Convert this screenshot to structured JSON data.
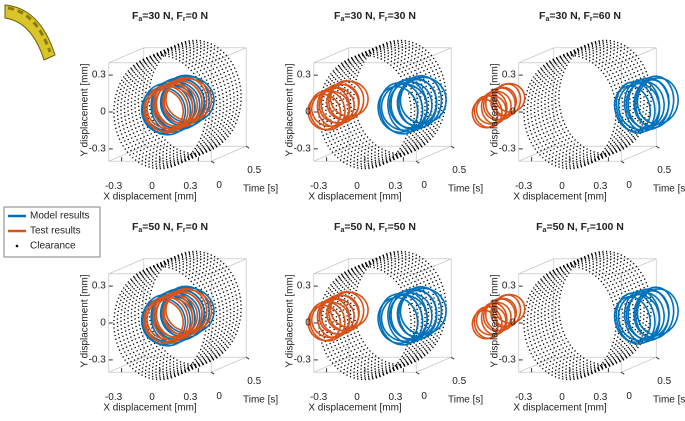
{
  "chart_data": [
    {
      "type": "orbit3d",
      "title": [
        "F",
        "a",
        "=30 N, F",
        "r",
        "=0 N"
      ],
      "xlabel": "X displacement [mm]",
      "ylabel": "Y displacement [mm]",
      "zlabel": "Time [s]",
      "xlim": [
        -0.4,
        0.4
      ],
      "ylim": [
        -0.4,
        0.4
      ],
      "zlim": [
        0,
        0.5
      ],
      "xticks": [
        -0.3,
        0,
        0.3
      ],
      "yticks": [
        -0.3,
        0,
        0.3
      ],
      "zticks": [
        0,
        0.5
      ]
    },
    {
      "type": "orbit3d",
      "title": [
        "F",
        "a",
        "=30 N, F",
        "r",
        "=30 N"
      ],
      "xlabel": "X displacement [mm]",
      "ylabel": "Y displacement [mm]",
      "zlabel": "Time [s]",
      "xlim": [
        -0.4,
        0.4
      ],
      "ylim": [
        -0.4,
        0.4
      ],
      "zlim": [
        0,
        0.5
      ],
      "xticks": [
        -0.3,
        0,
        0.3
      ],
      "yticks": [
        -0.3,
        0,
        0.3
      ],
      "zticks": [
        0,
        0.5
      ]
    },
    {
      "type": "orbit3d",
      "title": [
        "F",
        "a",
        "=30 N, F",
        "r",
        "=60 N"
      ],
      "xlabel": "X displacement [mm]",
      "ylabel": "Y displacement [mm]",
      "zlabel": "Time [s]",
      "xlim": [
        -0.4,
        0.4
      ],
      "ylim": [
        -0.4,
        0.4
      ],
      "zlim": [
        0,
        0.5
      ],
      "xticks": [
        -0.3,
        0,
        0.3
      ],
      "yticks": [
        -0.3,
        0,
        0.3
      ],
      "zticks": [
        0,
        0.5
      ]
    },
    {
      "type": "orbit3d",
      "title": [
        "F",
        "a",
        "=50 N, F",
        "r",
        "=0 N"
      ],
      "xlabel": "X displacement [mm]",
      "ylabel": "Y displacement [mm]",
      "zlabel": "Time [s]",
      "xlim": [
        -0.4,
        0.4
      ],
      "ylim": [
        -0.4,
        0.4
      ],
      "zlim": [
        0,
        0.5
      ],
      "xticks": [
        -0.3,
        0,
        0.3
      ],
      "yticks": [
        -0.3,
        0,
        0.3
      ],
      "zticks": [
        0,
        0.5
      ]
    },
    {
      "type": "orbit3d",
      "title": [
        "F",
        "a",
        "=50 N, F",
        "r",
        "=50 N"
      ],
      "xlabel": "X displacement [mm]",
      "ylabel": "Y displacement [mm]",
      "zlabel": "Time [s]",
      "xlim": [
        -0.4,
        0.4
      ],
      "ylim": [
        -0.4,
        0.4
      ],
      "zlim": [
        0,
        0.5
      ],
      "xticks": [
        -0.3,
        0,
        0.3
      ],
      "yticks": [
        -0.3,
        0,
        0.3
      ],
      "zticks": [
        0,
        0.5
      ]
    },
    {
      "type": "orbit3d",
      "title": [
        "F",
        "a",
        "=50 N, F",
        "r",
        "=100 N"
      ],
      "xlabel": "X displacement [mm]",
      "ylabel": "Y displacement [mm]",
      "zlabel": "Time [s]",
      "xlim": [
        -0.4,
        0.4
      ],
      "ylim": [
        -0.4,
        0.4
      ],
      "zlim": [
        0,
        0.5
      ],
      "xticks": [
        -0.3,
        0,
        0.3
      ],
      "yticks": [
        -0.3,
        0,
        0.3
      ],
      "zticks": [
        0,
        0.5
      ]
    }
  ],
  "legend": [
    {
      "name": "Model results",
      "color": "#0072bd"
    },
    {
      "name": "Test results",
      "color": "#d95319"
    },
    {
      "name": "Clearance",
      "color": "#000000"
    }
  ]
}
